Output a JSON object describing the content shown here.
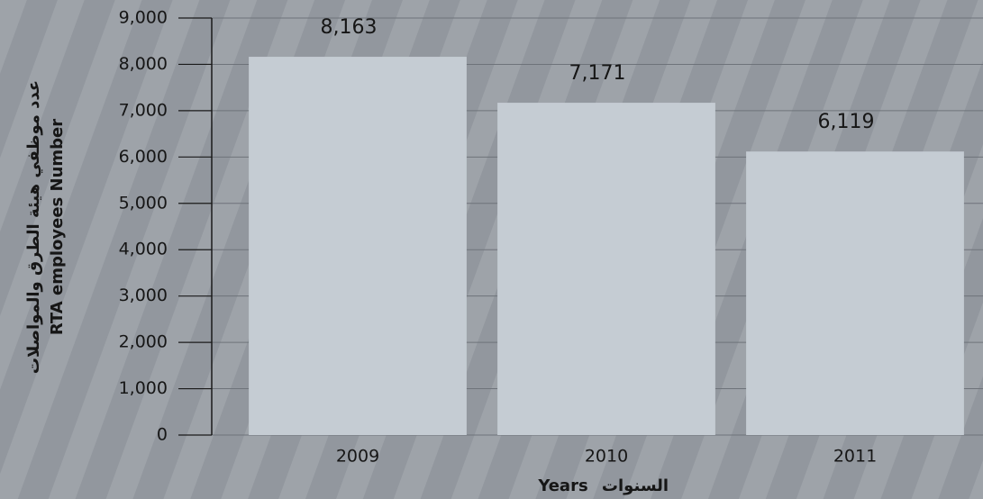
{
  "chart_data": {
    "type": "bar",
    "ylabel_ar": "عدد موظفي هيئة الطرق والمواصلات",
    "ylabel": "RTA employees Number",
    "xlabel": "Years",
    "xlabel_ar": "السنوات",
    "categories": [
      "2009",
      "2010",
      "2011"
    ],
    "values": [
      8163,
      7171,
      6119
    ],
    "value_labels": [
      "8,163",
      "7,171",
      "6,119"
    ],
    "color": "#c5ccd3",
    "ylim": [
      0,
      9000
    ],
    "yticks": [
      0,
      {
        "value": 1000,
        "label": "1,000"
      },
      {
        "value": 2000,
        "label": "2,000"
      },
      {
        "value": 3000,
        "label": "3,000"
      },
      {
        "value": 4000,
        "label": "4,000"
      },
      {
        "value": 5000,
        "label": "5,000"
      },
      {
        "value": 6000,
        "label": "6,000"
      },
      {
        "value": 7000,
        "label": "7,000"
      },
      {
        "value": 8000,
        "label": "8,000"
      },
      {
        "value": 9000,
        "label": "9,000"
      }
    ],
    "grid": true
  }
}
